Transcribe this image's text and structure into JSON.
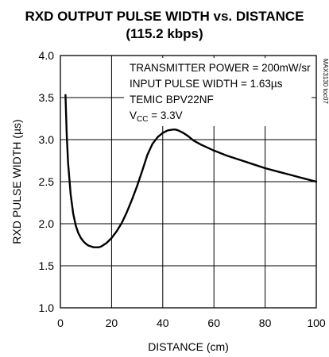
{
  "chart_data": {
    "type": "line",
    "title_line1": "RXD OUTPUT PULSE WIDTH vs. DISTANCE",
    "title_line2": "(115.2 kbps)",
    "xlabel": "DISTANCE (cm)",
    "ylabel": "RXD PULSE WIDTH (µs)",
    "xlim": [
      0,
      100
    ],
    "ylim": [
      1.0,
      4.0
    ],
    "x_ticks": [
      0,
      20,
      40,
      60,
      80,
      100
    ],
    "x_tick_labels": [
      "0",
      "20",
      "40",
      "60",
      "80",
      "100"
    ],
    "y_ticks": [
      1.0,
      1.5,
      2.0,
      2.5,
      3.0,
      3.5,
      4.0
    ],
    "y_tick_labels": [
      "1.0",
      "1.5",
      "2.0",
      "2.5",
      "3.0",
      "3.5",
      "4.0"
    ],
    "grid": true,
    "figure_code": "MAX3130 toc07",
    "annotations": {
      "line1": "TRANSMITTER POWER = 200mW/sr",
      "line2": "INPUT PULSE WIDTH = 1.63µs",
      "line3": "TEMIC BPV22NF",
      "line4_prefix": "V",
      "line4_sub": "CC",
      "line4_suffix": " = 3.3V"
    },
    "series": [
      {
        "x": [
          2,
          2.5,
          3,
          4,
          5,
          6,
          7,
          8,
          9,
          10,
          11,
          12,
          13,
          14,
          15,
          16,
          17,
          18,
          20,
          22,
          24,
          26,
          28,
          30,
          32,
          34,
          36,
          38,
          40,
          42,
          44,
          45,
          46,
          48,
          50,
          52,
          55,
          60,
          65,
          70,
          75,
          80,
          85,
          90,
          95,
          100
        ],
        "y": [
          3.53,
          3.05,
          2.72,
          2.35,
          2.12,
          1.98,
          1.89,
          1.83,
          1.79,
          1.76,
          1.74,
          1.73,
          1.72,
          1.72,
          1.72,
          1.73,
          1.75,
          1.77,
          1.83,
          1.91,
          2.01,
          2.14,
          2.29,
          2.45,
          2.63,
          2.82,
          2.95,
          3.03,
          3.08,
          3.11,
          3.12,
          3.12,
          3.11,
          3.08,
          3.04,
          2.99,
          2.94,
          2.87,
          2.81,
          2.76,
          2.71,
          2.66,
          2.62,
          2.58,
          2.54,
          2.5
        ]
      }
    ]
  }
}
